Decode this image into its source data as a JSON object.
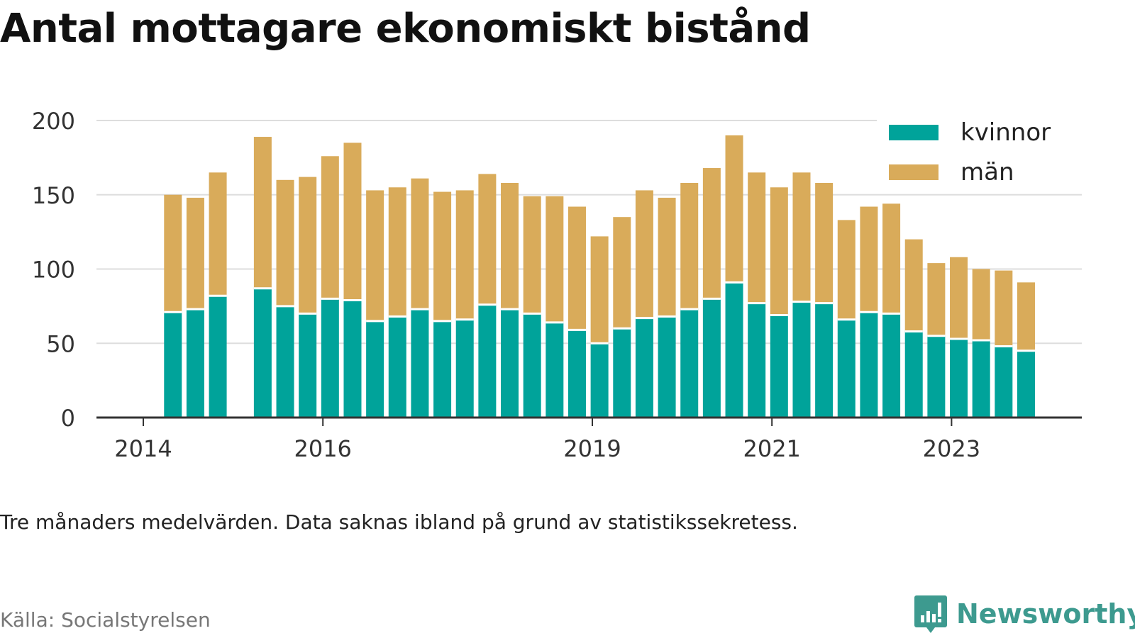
{
  "title": "Antal mottagare ekonomiskt bistånd",
  "subtitle": "Tre månaders medelvärden. Data saknas ibland på grund av statistikssekretess.",
  "source": "Källa: Socialstyrelsen",
  "logo_text": "Newsworthy",
  "colors": {
    "kvinnor": "#00a39a",
    "man": "#d9ab5a",
    "grid": "#dddddd",
    "axis": "#333333"
  },
  "chart_data": {
    "type": "bar",
    "stacked": true,
    "title": "Antal mottagare ekonomiskt bistånd",
    "xlabel": "",
    "ylabel": "",
    "ylim": [
      0,
      200
    ],
    "yticks": [
      0,
      50,
      100,
      150,
      200
    ],
    "xticks": [
      {
        "label": "2014",
        "x": 2014.0
      },
      {
        "label": "2016",
        "x": 2016.0
      },
      {
        "label": "2019",
        "x": 2019.0
      },
      {
        "label": "2021",
        "x": 2021.0
      },
      {
        "label": "2023",
        "x": 2023.0
      }
    ],
    "legend_position": "top-right",
    "grid": true,
    "x": [
      2014.33,
      2014.58,
      2014.83,
      2015.33,
      2015.58,
      2015.83,
      2016.08,
      2016.33,
      2016.58,
      2016.83,
      2017.08,
      2017.33,
      2017.58,
      2017.83,
      2018.08,
      2018.33,
      2018.58,
      2018.83,
      2019.08,
      2019.33,
      2019.58,
      2019.83,
      2020.08,
      2020.33,
      2020.58,
      2020.83,
      2021.08,
      2021.33,
      2021.58,
      2021.83,
      2022.08,
      2022.33,
      2022.58,
      2022.83,
      2023.08,
      2023.33,
      2023.58,
      2023.83
    ],
    "series": [
      {
        "name": "kvinnor",
        "values": [
          71,
          73,
          82,
          87,
          75,
          70,
          80,
          79,
          65,
          68,
          73,
          65,
          66,
          76,
          73,
          70,
          64,
          59,
          50,
          60,
          67,
          68,
          73,
          80,
          91,
          77,
          69,
          78,
          77,
          66,
          71,
          70,
          58,
          55,
          53,
          52,
          48,
          45
        ]
      },
      {
        "name": "män",
        "values": [
          79,
          75,
          83,
          102,
          85,
          92,
          96,
          106,
          88,
          87,
          88,
          87,
          87,
          88,
          85,
          79,
          85,
          83,
          72,
          75,
          86,
          80,
          85,
          88,
          99,
          88,
          86,
          87,
          81,
          67,
          71,
          74,
          62,
          49,
          55,
          48,
          51,
          46
        ]
      }
    ]
  }
}
